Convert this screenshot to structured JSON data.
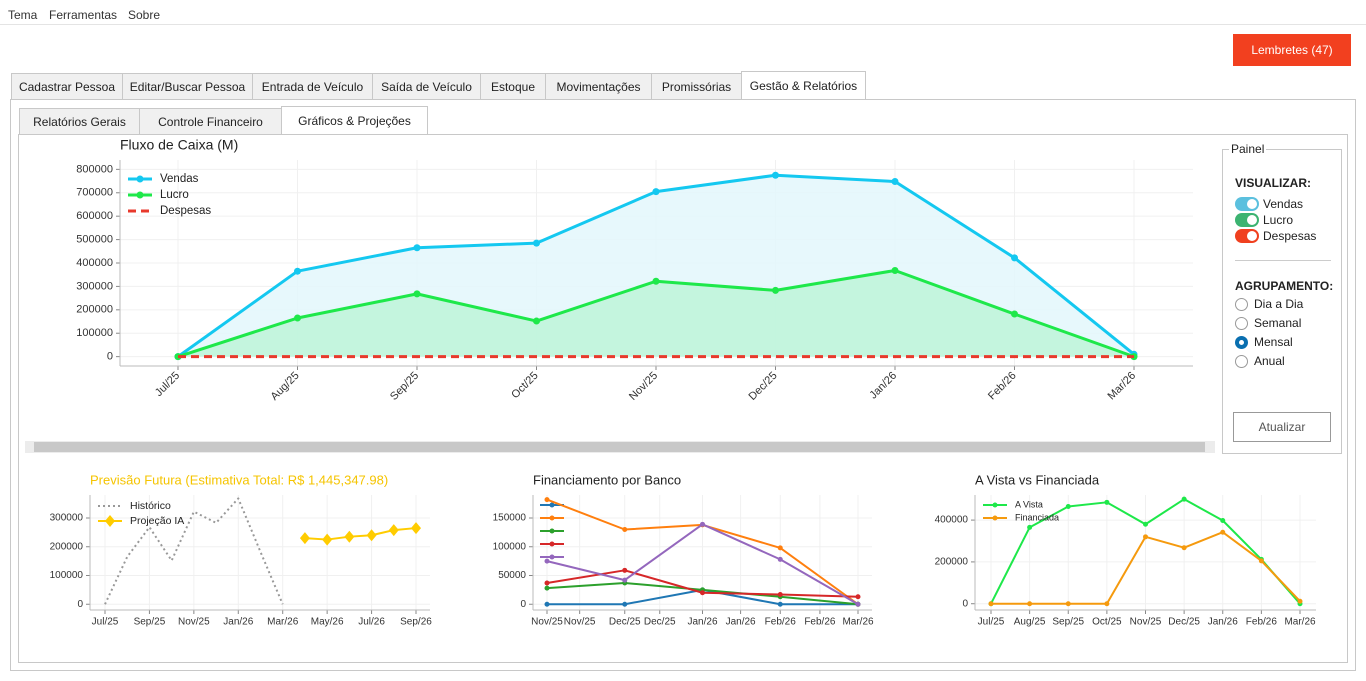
{
  "menu": [
    "Tema",
    "Ferramentas",
    "Sobre"
  ],
  "reminder_button": "Lembretes (47)",
  "tabs": [
    "Cadastrar Pessoa",
    "Editar/Buscar Pessoa",
    "Entrada de Veículo",
    "Saída de Veículo",
    "Estoque",
    "Movimentações",
    "Promissórias",
    "Gestão & Relatórios"
  ],
  "subtabs": [
    "Relatórios Gerais",
    "Controle Financeiro",
    "Gráficos & Projeções"
  ],
  "panel": {
    "title": "Painel",
    "visualize_label": "VISUALIZAR:",
    "toggles": [
      {
        "label": "Vendas",
        "color": "#5bc0de"
      },
      {
        "label": "Lucro",
        "color": "#3cb371"
      },
      {
        "label": "Despesas",
        "color": "#f0401f"
      }
    ],
    "grouping_label": "AGRUPAMENTO:",
    "grouping_options": [
      "Dia a Dia",
      "Semanal",
      "Mensal",
      "Anual"
    ],
    "grouping_selected": 2,
    "refresh_button": "Atualizar"
  },
  "chart_data": [
    {
      "type": "line",
      "title": "Fluxo de Caixa (M)",
      "categories": [
        "Jul/25",
        "Aug/25",
        "Sep/25",
        "Oct/25",
        "Nov/25",
        "Dec/25",
        "Jan/26",
        "Feb/26",
        "Mar/26"
      ],
      "series": [
        {
          "name": "Vendas",
          "color": "#14c8f0",
          "area_color": "#e3f7fc",
          "marker": "circle",
          "values": [
            0,
            365000,
            465000,
            485000,
            705000,
            775000,
            748000,
            422000,
            10000
          ]
        },
        {
          "name": "Lucro",
          "color": "#1ee84a",
          "area_color": "#bdf5d8",
          "marker": "circle",
          "values": [
            0,
            165000,
            268000,
            152000,
            322000,
            283000,
            368000,
            182000,
            0
          ]
        },
        {
          "name": "Despesas",
          "color": "#e8392c",
          "dash": "8 5",
          "values": [
            0,
            0,
            0,
            0,
            0,
            0,
            0,
            0,
            0
          ]
        }
      ],
      "ylim": [
        -40000,
        840000
      ],
      "yticks": [
        0,
        100000,
        200000,
        300000,
        400000,
        500000,
        600000,
        700000,
        800000
      ],
      "grid": true,
      "legend": "upper left",
      "rotate_x_labels": true
    },
    {
      "type": "line",
      "title": "Previsão Futura (Estimativa Total: R$ 1,445,347.98)",
      "title_color": "#f5c400",
      "categories": [
        "Jul/25",
        null,
        "Sep/25",
        null,
        "Nov/25",
        null,
        "Jan/26",
        null,
        "Mar/26",
        null,
        "May/26",
        null,
        "Jul/26",
        null,
        "Sep/26"
      ],
      "series": [
        {
          "name": "Histórico",
          "color": "#999999",
          "dash": "2 3",
          "values": [
            0,
            165000,
            268000,
            152000,
            322000,
            283000,
            368000,
            182000,
            0,
            null,
            null,
            null,
            null,
            null,
            null
          ]
        },
        {
          "name": "Projeção IA",
          "color": "#ffcc00",
          "marker": "diamond",
          "values": [
            null,
            null,
            null,
            null,
            null,
            null,
            null,
            null,
            null,
            230000,
            225000,
            235000,
            240000,
            258000,
            265000
          ]
        }
      ],
      "ylim": [
        -20000,
        380000
      ],
      "yticks": [
        0,
        100000,
        200000,
        300000
      ],
      "grid": true,
      "legend": "upper left"
    },
    {
      "type": "line",
      "title": "Financiamento por Banco",
      "categories": [
        "Nov/25",
        "Dec/25",
        "Jan/26",
        "Feb/26",
        "Mar/26"
      ],
      "xticks": [
        {
          "value": 0.42,
          "label": "Nov/25"
        },
        {
          "value": 1.45,
          "label": "Dec/25"
        },
        {
          "value": 2.49,
          "label": "Jan/26"
        },
        {
          "value": 3.51,
          "label": "Feb/26"
        }
      ],
      "series": [
        {
          "color": "#1f77b4",
          "marker": "circle",
          "values": [
            0,
            0,
            25000,
            0,
            0
          ]
        },
        {
          "color": "#ff7f0e",
          "marker": "circle",
          "values": [
            182000,
            130000,
            138000,
            98000,
            0
          ]
        },
        {
          "color": "#2ca02c",
          "marker": "circle",
          "values": [
            28000,
            37000,
            25000,
            13000,
            0
          ]
        },
        {
          "color": "#d62728",
          "marker": "circle",
          "values": [
            37000,
            59000,
            20000,
            17000,
            13000
          ]
        },
        {
          "color": "#9467bd",
          "marker": "circle",
          "values": [
            75000,
            42000,
            139000,
            78000,
            0
          ]
        }
      ],
      "ylim": [
        -10000,
        190000
      ],
      "yticks": [
        0,
        50000,
        100000,
        150000
      ],
      "grid": true,
      "legend": "upper left"
    },
    {
      "type": "line",
      "title": "A Vista vs Financiada",
      "categories": [
        "Jul/25",
        "Aug/25",
        "Sep/25",
        "Oct/25",
        "Nov/25",
        "Dec/25",
        "Jan/26",
        "Feb/26",
        "Mar/26"
      ],
      "series": [
        {
          "name": "A Vista",
          "color": "#1ee84a",
          "marker": "circle",
          "values": [
            0,
            365000,
            465000,
            485000,
            380000,
            500000,
            398000,
            212000,
            0
          ]
        },
        {
          "name": "Financiada",
          "color": "#f59a0e",
          "marker": "circle",
          "values": [
            0,
            0,
            0,
            0,
            320000,
            268000,
            342000,
            205000,
            12000
          ]
        }
      ],
      "ylim": [
        -30000,
        520000
      ],
      "yticks": [
        0,
        200000,
        400000
      ],
      "grid": true,
      "legend": "upper left"
    }
  ]
}
